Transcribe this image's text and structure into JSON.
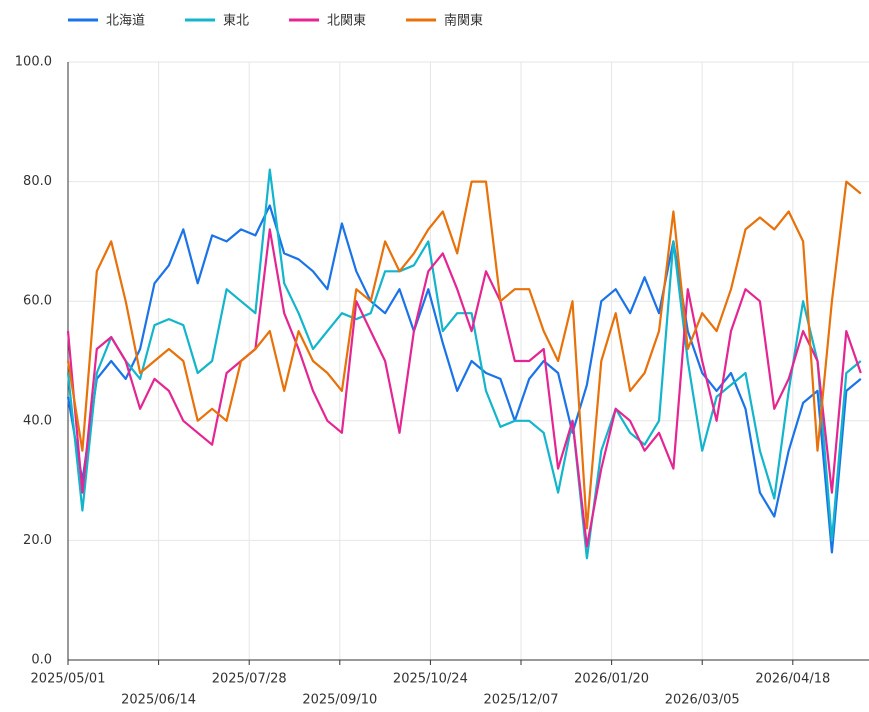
{
  "chart_data": {
    "type": "line",
    "x": [
      "2025/05/01",
      "2025/05/08",
      "2025/05/15",
      "2025/05/22",
      "2025/05/29",
      "2025/06/05",
      "2025/06/12",
      "2025/06/19",
      "2025/06/26",
      "2025/07/03",
      "2025/07/10",
      "2025/07/17",
      "2025/07/24",
      "2025/07/31",
      "2025/08/07",
      "2025/08/14",
      "2025/08/21",
      "2025/08/28",
      "2025/09/04",
      "2025/09/11",
      "2025/09/18",
      "2025/09/25",
      "2025/10/02",
      "2025/10/09",
      "2025/10/16",
      "2025/10/23",
      "2025/10/30",
      "2025/11/06",
      "2025/11/13",
      "2025/11/20",
      "2025/11/27",
      "2025/12/04",
      "2025/12/11",
      "2025/12/18",
      "2025/12/25",
      "2026/01/01",
      "2026/01/08",
      "2026/01/15",
      "2026/01/22",
      "2026/01/29",
      "2026/02/05",
      "2026/02/12",
      "2026/02/19",
      "2026/02/26",
      "2026/03/05",
      "2026/03/12",
      "2026/03/19",
      "2026/03/26",
      "2026/04/02",
      "2026/04/09",
      "2026/04/16",
      "2026/04/23",
      "2026/04/30",
      "2026/05/07",
      "2026/05/14",
      "2026/05/21"
    ],
    "series": [
      {
        "name": "北海道",
        "color": "#1a73e8",
        "values": [
          44,
          30,
          47,
          50,
          47,
          52,
          63,
          66,
          72,
          63,
          71,
          70,
          72,
          71,
          76,
          68,
          67,
          65,
          62,
          73,
          65,
          60,
          58,
          62,
          55,
          62,
          53,
          45,
          50,
          48,
          47,
          40,
          47,
          50,
          48,
          38,
          46,
          60,
          62,
          58,
          64,
          58,
          70,
          55,
          48,
          45,
          48,
          42,
          28,
          24,
          35,
          43,
          45,
          18,
          45,
          47
        ]
      },
      {
        "name": "東北",
        "color": "#12b5cb",
        "values": [
          48,
          25,
          48,
          54,
          50,
          47,
          56,
          57,
          56,
          48,
          50,
          62,
          60,
          58,
          82,
          63,
          58,
          52,
          55,
          58,
          57,
          58,
          65,
          65,
          66,
          70,
          55,
          58,
          58,
          45,
          39,
          40,
          40,
          38,
          28,
          40,
          17,
          35,
          42,
          38,
          36,
          40,
          70,
          50,
          35,
          44,
          46,
          48,
          35,
          27,
          45,
          60,
          50,
          20,
          48,
          50
        ]
      },
      {
        "name": "北関東",
        "color": "#e52592",
        "values": [
          55,
          28,
          52,
          54,
          50,
          42,
          47,
          45,
          40,
          38,
          36,
          48,
          50,
          52,
          72,
          58,
          52,
          45,
          40,
          38,
          60,
          55,
          50,
          38,
          55,
          65,
          68,
          62,
          55,
          65,
          60,
          50,
          50,
          52,
          32,
          40,
          19,
          32,
          42,
          40,
          35,
          38,
          32,
          62,
          50,
          40,
          55,
          62,
          60,
          42,
          47,
          55,
          50,
          28,
          55,
          48
        ]
      },
      {
        "name": "南関東",
        "color": "#e8710a",
        "values": [
          50,
          35,
          65,
          70,
          60,
          48,
          50,
          52,
          50,
          40,
          42,
          40,
          50,
          52,
          55,
          45,
          55,
          50,
          48,
          45,
          62,
          60,
          70,
          65,
          68,
          72,
          75,
          68,
          80,
          80,
          60,
          62,
          62,
          55,
          50,
          60,
          22,
          50,
          58,
          45,
          48,
          55,
          75,
          52,
          58,
          55,
          62,
          72,
          74,
          72,
          75,
          70,
          35,
          60,
          80,
          78
        ]
      }
    ],
    "xlim": [
      "2025/05/01",
      "2026/05/25"
    ],
    "xticks": [
      "2025/05/01",
      "2025/06/14",
      "2025/07/28",
      "2025/09/10",
      "2025/10/24",
      "2025/12/07",
      "2026/01/20",
      "2026/03/05",
      "2026/04/18"
    ],
    "ylim": [
      0,
      100
    ],
    "yticks": [
      {
        "value": 0,
        "label": "0.0"
      },
      {
        "value": 20,
        "label": "20.0"
      },
      {
        "value": 40,
        "label": "40.0"
      },
      {
        "value": 60,
        "label": "60.0"
      },
      {
        "value": 80,
        "label": "80.0"
      },
      {
        "value": 100,
        "label": "100.0"
      }
    ],
    "grid": true,
    "legend": "top"
  }
}
